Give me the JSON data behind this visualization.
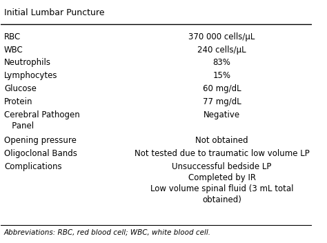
{
  "title": "Initial Lumbar Puncture",
  "rows": [
    [
      "RBC",
      "370 000 cells/μL"
    ],
    [
      "WBC",
      "240 cells/μL"
    ],
    [
      "Neutrophils",
      "83%"
    ],
    [
      "Lymphocytes",
      "15%"
    ],
    [
      "Glucose",
      "60 mg/dL"
    ],
    [
      "Protein",
      "77 mg/dL"
    ],
    [
      "Cerebral Pathogen\n   Panel",
      "Negative"
    ],
    [
      "Opening pressure",
      "Not obtained"
    ],
    [
      "Oligoclonal Bands",
      "Not tested due to traumatic low volume LP"
    ],
    [
      "Complications",
      "Unsuccessful bedside LP\nCompleted by IR\nLow volume spinal fluid (3 mL total\nobtained)"
    ]
  ],
  "footnote": "Abbreviations: RBC, red blood cell; WBC, white blood cell.",
  "bg_color": "#ffffff",
  "text_color": "#000000",
  "title_fontsize": 9,
  "body_fontsize": 8.5,
  "footnote_fontsize": 7.5
}
